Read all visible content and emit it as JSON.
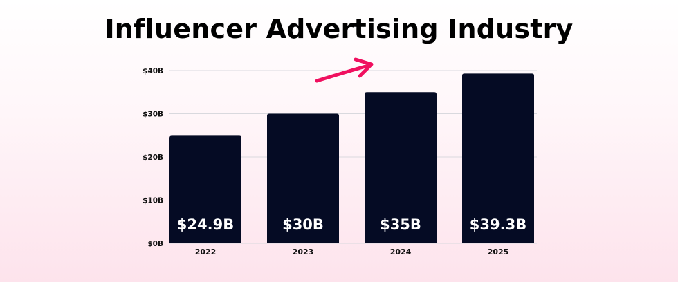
{
  "chart_data": {
    "type": "bar",
    "title": "Influencer Advertising Industry",
    "categories": [
      "2022",
      "2023",
      "2024",
      "2025"
    ],
    "values": [
      24.9,
      30,
      35,
      39.3
    ],
    "data_labels": [
      "$24.9B",
      "$30B",
      "$35B",
      "$39.3B"
    ],
    "yticks": [
      0,
      10,
      20,
      30,
      40
    ],
    "ytick_labels": [
      "$0B",
      "$10B",
      "$20B",
      "$30B",
      "$40B"
    ],
    "ylim": [
      0,
      40
    ],
    "xlabel": "",
    "ylabel": "",
    "grid": true,
    "legend": "none",
    "colors": {
      "bar": "#050b24",
      "grid": "#d9d9de",
      "arrow": "#f0105f",
      "data_label": "#ffffff",
      "text": "#111111"
    },
    "annotation_icon": "upward-trend-arrow-icon"
  }
}
